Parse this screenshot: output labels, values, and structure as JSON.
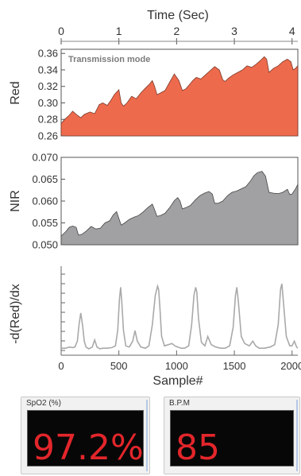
{
  "chart_data": [
    {
      "type": "area",
      "ylabel": "Red",
      "top_axis_label": "Time (Sec)",
      "top_axis_ticks": [
        0,
        1,
        2,
        3,
        4
      ],
      "top_xlim": [
        0,
        4.1
      ],
      "ylim": [
        0.26,
        0.365
      ],
      "yticks": [
        "0.26",
        "0.28",
        "0.30",
        "0.32",
        "0.34",
        "0.36"
      ],
      "annotation": "Transmission mode",
      "color": "#ee6a4c",
      "series": [
        {
          "x": [
            0,
            0.06,
            0.14,
            0.2,
            0.28,
            0.34,
            0.4,
            0.5,
            0.58,
            0.66,
            0.72,
            0.8,
            0.86,
            0.92,
            1.0,
            1.04,
            1.08,
            1.14,
            1.22,
            1.3,
            1.38,
            1.46,
            1.52,
            1.58,
            1.62,
            1.66,
            1.72,
            1.8,
            1.88,
            1.96,
            2.04,
            2.1,
            2.16,
            2.22,
            2.28,
            2.34,
            2.42,
            2.5,
            2.58,
            2.66,
            2.74,
            2.8,
            2.84,
            2.9,
            2.98,
            3.06,
            3.14,
            3.22,
            3.3,
            3.38,
            3.46,
            3.52,
            3.56,
            3.6,
            3.68,
            3.76,
            3.84,
            3.92,
            3.98,
            4.02,
            4.06,
            4.1
          ],
          "y": [
            0.275,
            0.28,
            0.285,
            0.29,
            0.285,
            0.282,
            0.286,
            0.289,
            0.287,
            0.298,
            0.3,
            0.297,
            0.303,
            0.31,
            0.316,
            0.3,
            0.296,
            0.3,
            0.308,
            0.305,
            0.312,
            0.318,
            0.322,
            0.327,
            0.32,
            0.31,
            0.312,
            0.315,
            0.325,
            0.335,
            0.327,
            0.315,
            0.317,
            0.322,
            0.327,
            0.331,
            0.329,
            0.334,
            0.339,
            0.344,
            0.34,
            0.328,
            0.326,
            0.33,
            0.334,
            0.337,
            0.34,
            0.345,
            0.343,
            0.347,
            0.352,
            0.356,
            0.353,
            0.337,
            0.342,
            0.345,
            0.35,
            0.353,
            0.35,
            0.34,
            0.342,
            0.345
          ]
        }
      ]
    },
    {
      "type": "area",
      "ylabel": "NIR",
      "ylim": [
        0.05,
        0.07
      ],
      "yticks": [
        "0.050",
        "0.055",
        "0.060",
        "0.065",
        "0.070"
      ],
      "color": "#a1a1a3",
      "series": [
        {
          "x": [
            0,
            0.08,
            0.14,
            0.2,
            0.26,
            0.3,
            0.36,
            0.44,
            0.52,
            0.6,
            0.68,
            0.76,
            0.84,
            0.9,
            0.96,
            1.0,
            1.04,
            1.1,
            1.18,
            1.26,
            1.34,
            1.42,
            1.5,
            1.58,
            1.62,
            1.66,
            1.72,
            1.8,
            1.88,
            1.96,
            2.02,
            2.06,
            2.1,
            2.16,
            2.24,
            2.32,
            2.4,
            2.48,
            2.56,
            2.62,
            2.66,
            2.72,
            2.8,
            2.88,
            2.96,
            3.04,
            3.12,
            3.2,
            3.28,
            3.34,
            3.4,
            3.48,
            3.54,
            3.6,
            3.68,
            3.76,
            3.84,
            3.92,
            3.96,
            4.0,
            4.06,
            4.1
          ],
          "y": [
            0.052,
            0.053,
            0.054,
            0.0543,
            0.054,
            0.0522,
            0.0524,
            0.0532,
            0.0542,
            0.0536,
            0.0538,
            0.055,
            0.0555,
            0.0568,
            0.0576,
            0.056,
            0.0545,
            0.055,
            0.0558,
            0.0563,
            0.0567,
            0.0575,
            0.0585,
            0.0593,
            0.058,
            0.0565,
            0.0567,
            0.0572,
            0.0585,
            0.0601,
            0.0608,
            0.06,
            0.0582,
            0.0585,
            0.059,
            0.0602,
            0.0612,
            0.0618,
            0.0622,
            0.0616,
            0.0595,
            0.0595,
            0.06,
            0.0612,
            0.062,
            0.0623,
            0.0628,
            0.0633,
            0.0646,
            0.0658,
            0.0665,
            0.0668,
            0.0657,
            0.062,
            0.0618,
            0.0617,
            0.062,
            0.0627,
            0.0615,
            0.0616,
            0.0628,
            0.0638
          ]
        }
      ]
    },
    {
      "type": "line",
      "ylabel": "-d(Red)/dx",
      "xlabel": "Sample#",
      "xticks": [
        "0",
        "500",
        "1000",
        "1500",
        "2000"
      ],
      "xlim": [
        0,
        2050
      ],
      "ylim": [
        -0.6,
        7
      ],
      "color": "#a9a9a9",
      "series": [
        {
          "x": [
            0,
            40,
            70,
            100,
            120,
            140,
            155,
            170,
            185,
            200,
            215,
            240,
            270,
            290,
            310,
            335,
            360,
            400,
            440,
            470,
            490,
            505,
            515,
            525,
            540,
            560,
            590,
            620,
            640,
            660,
            690,
            730,
            760,
            790,
            815,
            835,
            845,
            855,
            870,
            895,
            930,
            960,
            985,
            1010,
            1040,
            1070,
            1105,
            1130,
            1150,
            1165,
            1175,
            1190,
            1215,
            1245,
            1270,
            1300,
            1340,
            1380,
            1420,
            1460,
            1490,
            1510,
            1522,
            1535,
            1560,
            1590,
            1630,
            1660,
            1685,
            1715,
            1760,
            1810,
            1850,
            1880,
            1900,
            1912,
            1925,
            1950,
            1980,
            2000,
            2020,
            2040,
            2050
          ],
          "y": [
            0,
            0,
            0.1,
            0.05,
            0.1,
            0.6,
            2.0,
            3.0,
            2.0,
            0.6,
            0.1,
            -0.05,
            0.1,
            0.7,
            0.1,
            -0.05,
            0.0,
            0.0,
            0.05,
            0.2,
            1.5,
            4.2,
            5.2,
            4.0,
            1.5,
            0.2,
            0.1,
            0.6,
            1.5,
            0.6,
            0.1,
            0.0,
            0.2,
            2.0,
            4.5,
            5.3,
            5.0,
            3.5,
            1.0,
            0.2,
            0.3,
            0.4,
            0.2,
            0.1,
            0.0,
            0.0,
            0.2,
            2.0,
            4.5,
            5.2,
            4.8,
            2.5,
            0.5,
            0.2,
            1.0,
            0.3,
            0.1,
            0.0,
            0.0,
            0.2,
            1.8,
            4.5,
            5.2,
            4.0,
            1.0,
            0.4,
            0.2,
            0.6,
            0.2,
            0.0,
            0.0,
            0.1,
            0.3,
            2.0,
            5.0,
            5.5,
            4.0,
            1.0,
            0.2,
            0.2,
            0.6,
            0.1,
            0.0
          ]
        }
      ]
    }
  ],
  "monitors": {
    "spo2": {
      "label": "SpO2 (%)",
      "value": "97.2%"
    },
    "bpm": {
      "label": "B.P.M",
      "value": "85"
    }
  }
}
